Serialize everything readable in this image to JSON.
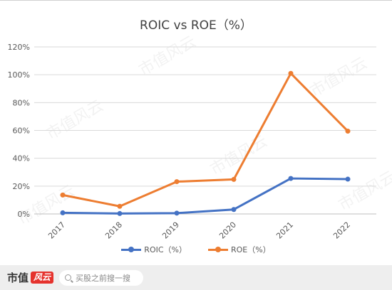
{
  "chart_data": {
    "type": "line",
    "title": "ROIC vs ROE（%）",
    "categories": [
      "2017",
      "2018",
      "2019",
      "2020",
      "2021",
      "2022"
    ],
    "ylim": [
      0,
      120
    ],
    "yticks": [
      0,
      20,
      40,
      60,
      80,
      100,
      120
    ],
    "ytick_labels": [
      "0%",
      "20%",
      "40%",
      "60%",
      "80%",
      "100%",
      "120%"
    ],
    "grid": true,
    "legend_position": "bottom",
    "series": [
      {
        "name": "ROIC（%）",
        "color": "#4472c4",
        "values": [
          0.8,
          0.3,
          0.6,
          3.2,
          25.5,
          25.0
        ]
      },
      {
        "name": "ROE（%）",
        "color": "#ed7d31",
        "values": [
          13.6,
          5.5,
          23.2,
          24.8,
          101.0,
          59.5
        ]
      }
    ]
  },
  "footer": {
    "brand": "市值",
    "brand_badge": "风云",
    "search_placeholder": "买股之前搜一搜"
  },
  "watermark": "市值风云"
}
